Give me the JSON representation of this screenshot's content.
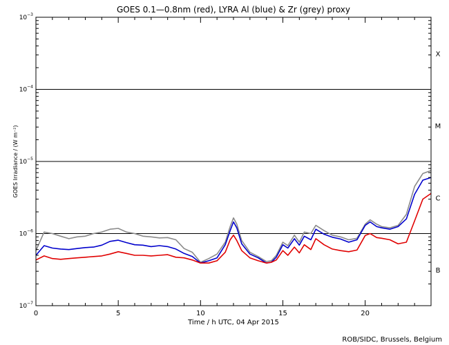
{
  "chart_data": {
    "type": "line",
    "title": "GOES 0.1—0.8nm (red), LYRA Al (blue) & Zr (grey) proxy",
    "xlabel": "Time / h UTC, 04 Apr 2015",
    "ylabel": "GOES Irradiance / (W m⁻²)",
    "credit": "ROB/SIDC, Brussels, Belgium",
    "xlim": [
      0,
      24
    ],
    "ylim": [
      1e-07,
      0.001
    ],
    "yscale": "log",
    "x_ticks": [
      {
        "value": 0,
        "label": "0"
      },
      {
        "value": 5,
        "label": "5"
      },
      {
        "value": 10,
        "label": "10"
      },
      {
        "value": 15,
        "label": "15"
      },
      {
        "value": 20,
        "label": "20"
      }
    ],
    "y_ticks": [
      {
        "exp": -7,
        "mantissa": "10",
        "sup": "−7"
      },
      {
        "exp": -6,
        "mantissa": "10",
        "sup": "−6"
      },
      {
        "exp": -5,
        "mantissa": "10",
        "sup": "−5"
      },
      {
        "exp": -4,
        "mantissa": "10",
        "sup": "−4"
      },
      {
        "exp": -3,
        "mantissa": "10",
        "sup": "−3"
      }
    ],
    "class_lines": [
      1e-06,
      1e-05,
      0.0001
    ],
    "flare_classes": [
      {
        "label": "B",
        "exp": -6.5
      },
      {
        "label": "C",
        "exp": -5.5
      },
      {
        "label": "M",
        "exp": -4.5
      },
      {
        "label": "X",
        "exp": -3.5
      }
    ],
    "x": [
      0,
      0.5,
      1,
      1.5,
      2,
      2.5,
      3,
      3.5,
      4,
      4.5,
      5,
      5.5,
      6,
      6.5,
      7,
      7.5,
      8,
      8.5,
      9,
      9.5,
      10,
      10.5,
      11,
      11.5,
      11.8,
      12,
      12.2,
      12.5,
      13,
      13.5,
      14,
      14.3,
      14.6,
      15,
      15.3,
      15.7,
      16,
      16.3,
      16.7,
      17,
      17.5,
      18,
      18.5,
      19,
      19.5,
      20,
      20.3,
      20.7,
      21,
      21.5,
      22,
      22.5,
      23,
      23.5,
      24
    ],
    "series": [
      {
        "name": "GOES 0.1—0.8nm",
        "color": "#e00000",
        "y": [
          4.3e-07,
          4.9e-07,
          4.5e-07,
          4.4e-07,
          4.5e-07,
          4.6e-07,
          4.7e-07,
          4.8e-07,
          4.9e-07,
          5.2e-07,
          5.6e-07,
          5.3e-07,
          5e-07,
          5e-07,
          4.9e-07,
          5e-07,
          5.1e-07,
          4.7e-07,
          4.6e-07,
          4.3e-07,
          3.9e-07,
          3.9e-07,
          4.2e-07,
          5.5e-07,
          8.2e-07,
          9.5e-07,
          8e-07,
          5.8e-07,
          4.6e-07,
          4.2e-07,
          3.9e-07,
          4e-07,
          4.3e-07,
          5.8e-07,
          5e-07,
          6.5e-07,
          5.4e-07,
          7e-07,
          6e-07,
          8.5e-07,
          7e-07,
          6.1e-07,
          5.8e-07,
          5.6e-07,
          5.9e-07,
          9.4e-07,
          1e-06,
          8.8e-07,
          8.6e-07,
          8.2e-07,
          7.2e-07,
          7.6e-07,
          1.5e-06,
          3e-06,
          3.6e-06
        ]
      },
      {
        "name": "LYRA Al",
        "color": "#0000cc",
        "y": [
          5e-07,
          6.8e-07,
          6.3e-07,
          6.1e-07,
          6e-07,
          6.2e-07,
          6.4e-07,
          6.5e-07,
          6.9e-07,
          7.8e-07,
          8.1e-07,
          7.5e-07,
          7e-07,
          6.9e-07,
          6.6e-07,
          6.8e-07,
          6.6e-07,
          6.1e-07,
          5.3e-07,
          4.8e-07,
          3.9e-07,
          4.2e-07,
          4.6e-07,
          7e-07,
          1.1e-06,
          1.45e-06,
          1.2e-06,
          7.2e-07,
          5.2e-07,
          4.6e-07,
          3.9e-07,
          4e-07,
          4.7e-07,
          7e-07,
          6.3e-07,
          8.5e-07,
          6.9e-07,
          9.2e-07,
          8.2e-07,
          1.15e-06,
          9.8e-07,
          8.9e-07,
          8.4e-07,
          7.6e-07,
          8.2e-07,
          1.3e-06,
          1.45e-06,
          1.25e-06,
          1.2e-06,
          1.15e-06,
          1.25e-06,
          1.6e-06,
          3.5e-06,
          5.5e-06,
          6e-06
        ]
      },
      {
        "name": "LYRA Zr",
        "color": "#8a8a8a",
        "y": [
          5.8e-07,
          1.05e-06,
          1e-06,
          9.2e-07,
          8.5e-07,
          9e-07,
          9.2e-07,
          1e-06,
          1.05e-06,
          1.15e-06,
          1.18e-06,
          1.05e-06,
          1e-06,
          9.2e-07,
          9e-07,
          8.7e-07,
          8.8e-07,
          8.2e-07,
          6.2e-07,
          5.5e-07,
          4e-07,
          4.5e-07,
          5.2e-07,
          7.6e-07,
          1.25e-06,
          1.65e-06,
          1.35e-06,
          8e-07,
          5.5e-07,
          4.8e-07,
          4.1e-07,
          4.2e-07,
          5e-07,
          7.6e-07,
          6.8e-07,
          9.5e-07,
          7.6e-07,
          1.05e-06,
          1e-06,
          1.3e-06,
          1.1e-06,
          9.5e-07,
          9e-07,
          8.2e-07,
          8.6e-07,
          1.35e-06,
          1.55e-06,
          1.35e-06,
          1.25e-06,
          1.2e-06,
          1.3e-06,
          1.85e-06,
          4.5e-06,
          6.8e-06,
          7.5e-06
        ]
      }
    ]
  }
}
